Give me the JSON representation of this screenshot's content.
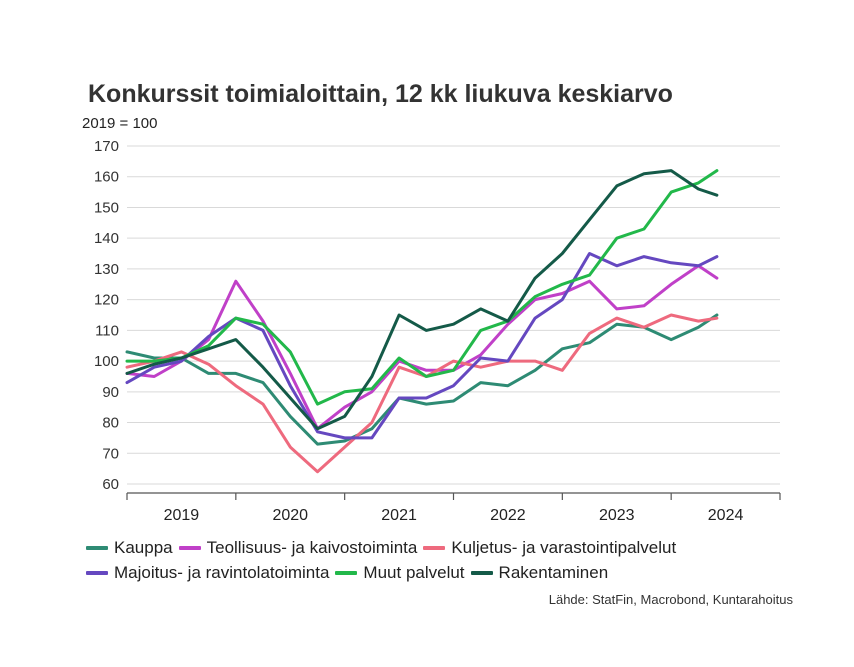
{
  "chart_data": {
    "type": "line",
    "title": "Konkurssit toimialoittain, 12 kk liukuva keskiarvo",
    "subtitle": "2019 = 100",
    "ylim": [
      60,
      170
    ],
    "yticks": [
      60,
      70,
      80,
      90,
      100,
      110,
      120,
      130,
      140,
      150,
      160,
      170
    ],
    "xlim": [
      2019,
      2025.0
    ],
    "xticks_labels": [
      "2019",
      "2020",
      "2021",
      "2022",
      "2023",
      "2024"
    ],
    "grid": true,
    "legend_position": "bottom",
    "source": "Lähde: StatFin, Macrobond, Kuntarahoitus",
    "series": [
      {
        "name": "Kauppa",
        "color": "#2e8b74",
        "x": [
          2019.0,
          2019.25,
          2019.5,
          2019.75,
          2020.0,
          2020.25,
          2020.5,
          2020.75,
          2021.0,
          2021.25,
          2021.5,
          2021.75,
          2022.0,
          2022.25,
          2022.5,
          2022.75,
          2023.0,
          2023.25,
          2023.5,
          2023.75,
          2024.0,
          2024.25,
          2024.42
        ],
        "y": [
          103,
          101,
          101,
          96,
          96,
          93,
          82,
          73,
          74,
          78,
          88,
          86,
          87,
          93,
          92,
          97,
          104,
          106,
          112,
          111,
          107,
          111,
          115
        ]
      },
      {
        "name": "Teollisuus- ja kaivostoiminta",
        "color": "#c040c8",
        "x": [
          2019.0,
          2019.25,
          2019.5,
          2019.75,
          2020.0,
          2020.25,
          2020.5,
          2020.75,
          2021.0,
          2021.25,
          2021.5,
          2021.75,
          2022.0,
          2022.25,
          2022.5,
          2022.75,
          2023.0,
          2023.25,
          2023.5,
          2023.75,
          2024.0,
          2024.25,
          2024.42
        ],
        "y": [
          96,
          95,
          100,
          107,
          126,
          113,
          96,
          78,
          85,
          90,
          100,
          97,
          97,
          102,
          112,
          120,
          122,
          126,
          117,
          118,
          125,
          131,
          127
        ]
      },
      {
        "name": "Kuljetus- ja varastointipalvelut",
        "color": "#ee6a7e",
        "x": [
          2019.0,
          2019.25,
          2019.5,
          2019.75,
          2020.0,
          2020.25,
          2020.5,
          2020.75,
          2021.0,
          2021.25,
          2021.5,
          2021.75,
          2022.0,
          2022.25,
          2022.5,
          2022.75,
          2023.0,
          2023.25,
          2023.5,
          2023.75,
          2024.0,
          2024.25,
          2024.42
        ],
        "y": [
          98,
          100,
          103,
          99,
          92,
          86,
          72,
          64,
          72,
          80,
          98,
          95,
          100,
          98,
          100,
          100,
          97,
          109,
          114,
          111,
          115,
          113,
          114
        ]
      },
      {
        "name": "Majoitus- ja ravintolatoiminta",
        "color": "#6548c0",
        "x": [
          2019.0,
          2019.25,
          2019.5,
          2019.75,
          2020.0,
          2020.25,
          2020.5,
          2020.75,
          2021.0,
          2021.25,
          2021.5,
          2021.75,
          2022.0,
          2022.25,
          2022.5,
          2022.75,
          2023.0,
          2023.25,
          2023.5,
          2023.75,
          2024.0,
          2024.25,
          2024.42
        ],
        "y": [
          93,
          98,
          100,
          108,
          114,
          110,
          92,
          77,
          75,
          75,
          88,
          88,
          92,
          101,
          100,
          114,
          120,
          135,
          131,
          134,
          132,
          131,
          134
        ]
      },
      {
        "name": "Muut palvelut",
        "color": "#22b84a",
        "x": [
          2019.0,
          2019.25,
          2019.5,
          2019.75,
          2020.0,
          2020.25,
          2020.5,
          2020.75,
          2021.0,
          2021.25,
          2021.5,
          2021.75,
          2022.0,
          2022.25,
          2022.5,
          2022.75,
          2023.0,
          2023.25,
          2023.5,
          2023.75,
          2024.0,
          2024.25,
          2024.42
        ],
        "y": [
          100,
          100,
          101,
          105,
          114,
          112,
          103,
          86,
          90,
          91,
          101,
          95,
          97,
          110,
          113,
          121,
          125,
          128,
          140,
          143,
          155,
          158,
          162
        ]
      },
      {
        "name": "Rakentaminen",
        "color": "#145a48",
        "x": [
          2019.0,
          2019.25,
          2019.5,
          2019.75,
          2020.0,
          2020.25,
          2020.5,
          2020.75,
          2021.0,
          2021.25,
          2021.5,
          2021.75,
          2022.0,
          2022.25,
          2022.5,
          2022.75,
          2023.0,
          2023.25,
          2023.5,
          2023.75,
          2024.0,
          2024.25,
          2024.42
        ],
        "y": [
          96,
          99,
          101,
          104,
          107,
          98,
          88,
          78,
          82,
          95,
          115,
          110,
          112,
          117,
          113,
          127,
          135,
          146,
          157,
          161,
          162,
          156,
          154
        ]
      }
    ]
  }
}
